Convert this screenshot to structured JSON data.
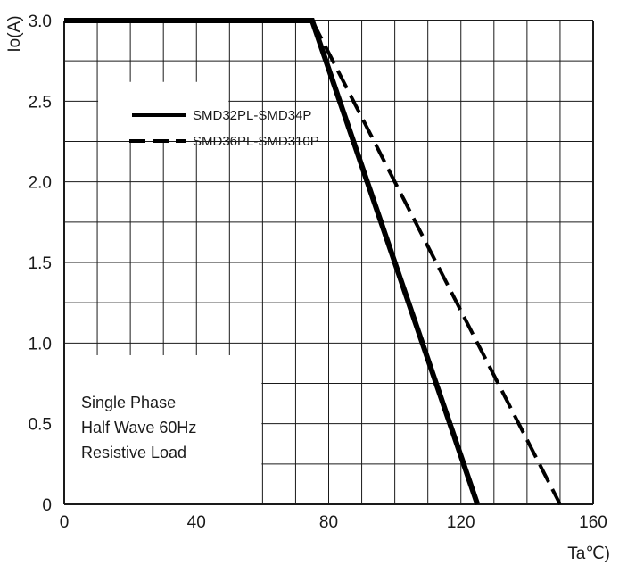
{
  "chart_data": {
    "type": "line",
    "title": "",
    "xlabel": "Ta℃)",
    "ylabel": "Io(A)",
    "xlim": [
      0,
      160
    ],
    "ylim": [
      0,
      3.0
    ],
    "x_ticks": [
      0,
      40,
      80,
      120,
      160
    ],
    "x_tick_labels": [
      "0",
      "40",
      "80",
      "120",
      "160"
    ],
    "y_ticks": [
      0,
      0.5,
      1.0,
      1.5,
      2.0,
      2.5,
      3.0
    ],
    "y_tick_labels": [
      "0",
      "0.5",
      "1.0",
      "1.5",
      "2.0",
      "2.5",
      "3.0"
    ],
    "grid": true,
    "legend_position": "top-left",
    "series": [
      {
        "name": "SMD32PL-SMD34P",
        "style": "solid",
        "x": [
          0,
          75,
          125
        ],
        "y": [
          3.0,
          3.0,
          0
        ]
      },
      {
        "name": "SMD36PL-SMD310P",
        "style": "dashed",
        "x": [
          0,
          75,
          150
        ],
        "y": [
          3.0,
          3.0,
          0
        ]
      }
    ],
    "annotation": [
      "Single Phase",
      "Half Wave 60Hz",
      "Resistive Load"
    ]
  },
  "colors": {
    "line": "#000000",
    "grid": "#1a1a1a",
    "background": "#ffffff"
  }
}
